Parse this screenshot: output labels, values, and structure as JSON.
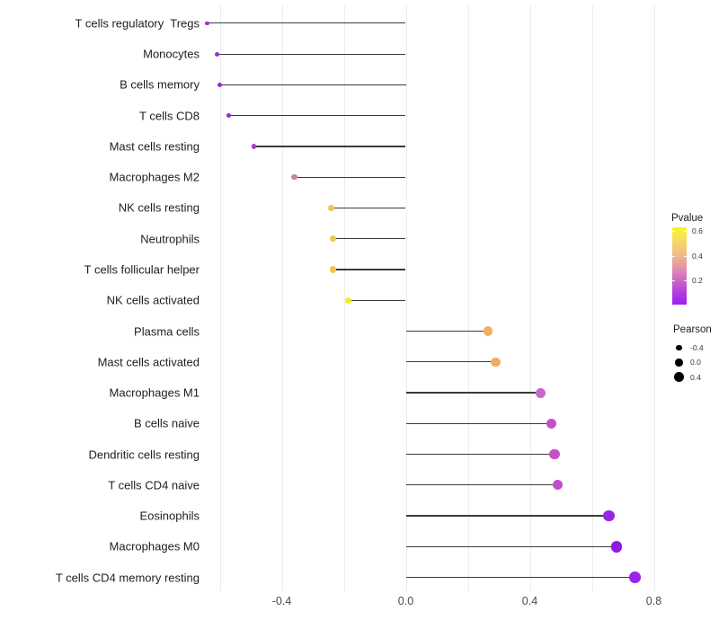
{
  "chart_data": {
    "type": "scatter",
    "subtype": "lollipop",
    "title": "",
    "xlabel": "",
    "ylabel": "",
    "grid": "vertical-only",
    "x_axis": {
      "range": [
        -0.68,
        0.85
      ],
      "gridline_values": [
        -0.6,
        -0.4,
        -0.2,
        0.0,
        0.2,
        0.4,
        0.6,
        0.8
      ],
      "tick_labels": [
        {
          "value": -0.4,
          "label": "-0.4"
        },
        {
          "value": 0.0,
          "label": "0.0"
        },
        {
          "value": 0.4,
          "label": "0.4"
        },
        {
          "value": 0.8,
          "label": "0.8"
        }
      ]
    },
    "rows": [
      {
        "name": "T cells regulatory  Tregs",
        "pearson": -0.64,
        "pvalue": 0.08,
        "color": "#9C35CF"
      },
      {
        "name": "Monocytes",
        "pearson": -0.61,
        "pvalue": 0.08,
        "color": "#9B30CE"
      },
      {
        "name": "B cells memory",
        "pearson": -0.6,
        "pvalue": 0.07,
        "color": "#9229D2"
      },
      {
        "name": "T cells CD8",
        "pearson": -0.57,
        "pvalue": 0.07,
        "color": "#9229D2"
      },
      {
        "name": "Mast cells resting",
        "pearson": -0.49,
        "pvalue": 0.1,
        "color": "#A43FD2"
      },
      {
        "name": "Macrophages M2",
        "pearson": -0.36,
        "pvalue": 0.33,
        "color": "#D07F97"
      },
      {
        "name": "NK cells resting",
        "pearson": -0.24,
        "pvalue": 0.55,
        "color": "#EEC94F"
      },
      {
        "name": "Neutrophils",
        "pearson": -0.235,
        "pvalue": 0.55,
        "color": "#EEC94F"
      },
      {
        "name": "T cells follicular helper",
        "pearson": -0.235,
        "pvalue": 0.55,
        "color": "#EEC94F"
      },
      {
        "name": "NK cells activated",
        "pearson": -0.185,
        "pvalue": 0.62,
        "color": "#F2EE21"
      },
      {
        "name": "Plasma cells",
        "pearson": 0.265,
        "pvalue": 0.47,
        "color": "#F0AE64"
      },
      {
        "name": "Mast cells activated",
        "pearson": 0.29,
        "pvalue": 0.46,
        "color": "#F0AC60"
      },
      {
        "name": "Macrophages M1",
        "pearson": 0.435,
        "pvalue": 0.24,
        "color": "#C966CB"
      },
      {
        "name": "B cells naive",
        "pearson": 0.47,
        "pvalue": 0.21,
        "color": "#C450C9"
      },
      {
        "name": "Dendritic cells resting",
        "pearson": 0.48,
        "pvalue": 0.21,
        "color": "#C450C9"
      },
      {
        "name": "T cells CD4 naive",
        "pearson": 0.49,
        "pvalue": 0.2,
        "color": "#C34BCB"
      },
      {
        "name": "Eosinophils",
        "pearson": 0.655,
        "pvalue": 0.05,
        "color": "#9527E2"
      },
      {
        "name": "Macrophages M0",
        "pearson": 0.68,
        "pvalue": 0.04,
        "color": "#9218E6"
      },
      {
        "name": "T cells CD4 memory resting",
        "pearson": 0.74,
        "pvalue": 0.02,
        "color": "#9B22E8"
      }
    ],
    "legends": {
      "pvalue": {
        "title": "Pvalue",
        "range_top": 0.632,
        "range_bottom": 0.0,
        "ticks": [
          {
            "value": 0.6,
            "label": "0.6"
          },
          {
            "value": 0.4,
            "label": "0.4"
          },
          {
            "value": 0.2,
            "label": "0.2"
          }
        ],
        "gradient_top_to_bottom": [
          "#FBF425",
          "#F8DE5F",
          "#F2BC85",
          "#E392AC",
          "#CB63C6",
          "#B23BE0",
          "#A01FF0"
        ]
      },
      "pearson": {
        "title": "Pearson",
        "entries": [
          {
            "value": -0.4,
            "label": "-0.4"
          },
          {
            "value": 0.0,
            "label": "0.0"
          },
          {
            "value": 0.4,
            "label": "0.4"
          }
        ]
      }
    }
  }
}
